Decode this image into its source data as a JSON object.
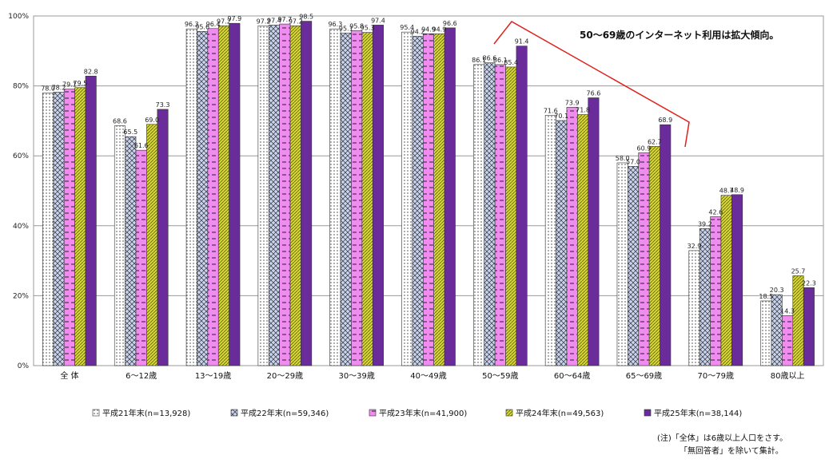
{
  "chart_data": {
    "type": "bar",
    "categories": [
      "全 体",
      "6～12歳",
      "13～19歳",
      "20～29歳",
      "30～39歳",
      "40～49歳",
      "50～59歳",
      "60～64歳",
      "65～69歳",
      "70～79歳",
      "80歳以上"
    ],
    "series": [
      {
        "name": "平成21年末(n=13,928)",
        "values": [
          78.0,
          68.6,
          96.3,
          97.2,
          96.3,
          95.4,
          86.1,
          71.6,
          58.0,
          32.9,
          18.5
        ],
        "color": "#ffffff",
        "pattern": "dots"
      },
      {
        "name": "平成22年末(n=59,346)",
        "values": [
          78.2,
          65.5,
          95.6,
          97.4,
          95.1,
          94.2,
          86.6,
          70.1,
          57.0,
          39.2,
          20.3
        ],
        "color": "#c8d4f0",
        "pattern": "crosshatch"
      },
      {
        "name": "平成23年末(n=41,900)",
        "values": [
          79.1,
          61.6,
          96.4,
          97.7,
          95.8,
          94.9,
          86.1,
          73.9,
          60.9,
          42.6,
          14.3
        ],
        "color": "#f08cf0",
        "pattern": "dashes"
      },
      {
        "name": "平成24年末(n=49,563)",
        "values": [
          79.5,
          69.0,
          97.2,
          97.2,
          95.3,
          94.9,
          85.4,
          71.8,
          62.7,
          48.7,
          25.7
        ],
        "color": "#d6d63a",
        "pattern": "diagonal"
      },
      {
        "name": "平成25年末(n=38,144)",
        "values": [
          82.8,
          73.3,
          97.9,
          98.5,
          97.4,
          96.6,
          91.4,
          76.6,
          68.9,
          48.9,
          22.3
        ],
        "color": "#6a2c9a",
        "pattern": "solid"
      }
    ],
    "yticks": [
      "0%",
      "20%",
      "40%",
      "60%",
      "80%",
      "100%"
    ],
    "ylim": [
      0,
      100
    ],
    "grid": true,
    "legend_position": "bottom",
    "annotation": "50～69歳のインターネット利用は拡大傾向。",
    "note_lines": [
      "(注)「全体」は6歳以上人口をさす。",
      "「無回答者」を除いて集計。"
    ]
  }
}
